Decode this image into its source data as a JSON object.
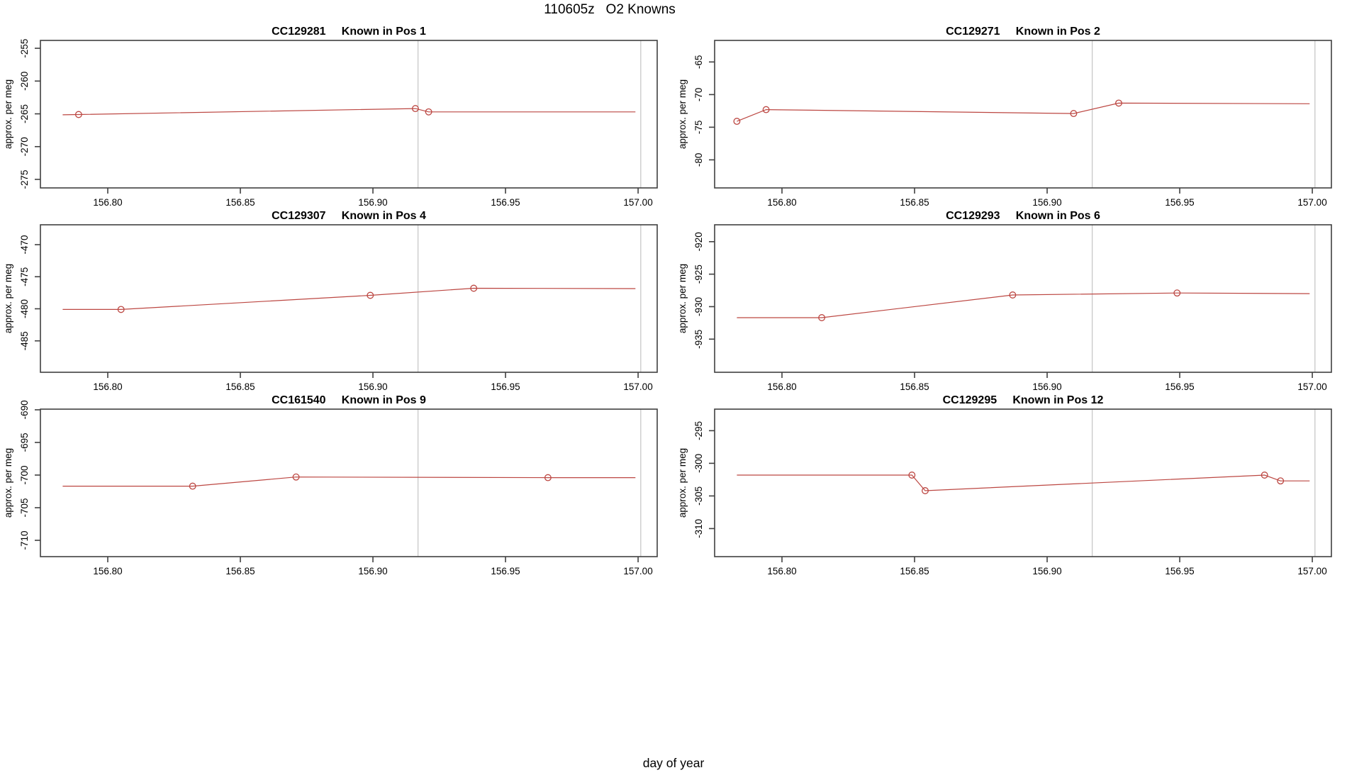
{
  "figure": {
    "title": "110605z   O2 Knowns",
    "xlabel": "day of year",
    "colors": {
      "series": "#bc4742",
      "vline": "#c8c8c8",
      "frame": "#404040",
      "text": "#000000",
      "background": "#ffffff"
    }
  },
  "chart_data": {
    "type": "line",
    "grid": false,
    "legend": "none",
    "x_axis": {
      "label": "day of year",
      "range": [
        156.7746,
        157.0072
      ],
      "ticks": [
        156.8,
        156.85,
        156.9,
        156.95,
        157.0
      ],
      "tick_labels": [
        "156.80",
        "156.85",
        "156.90",
        "156.95",
        "157.00"
      ]
    },
    "y_label": "approx. per meg",
    "vlines": [
      156.917,
      157.001
    ],
    "marker": "open-circle",
    "plots": [
      {
        "sample_id": "CC129281",
        "position_label": "Known in Pos 1",
        "y_ticks": [
          -275,
          -270,
          -265,
          -260,
          -255
        ],
        "y_tick_labels": [
          "-275",
          "-270",
          "-265",
          "-260",
          "-255"
        ],
        "y_range": [
          -276.3,
          -253.8
        ],
        "line": [
          [
            156.783,
            -265.15
          ],
          [
            156.789,
            -265.1
          ],
          [
            156.916,
            -264.2
          ],
          [
            156.921,
            -264.7
          ],
          [
            156.999,
            -264.7
          ]
        ],
        "points": [
          [
            156.789,
            -265.1
          ],
          [
            156.916,
            -264.2
          ],
          [
            156.921,
            -264.7
          ]
        ]
      },
      {
        "sample_id": "CC129271",
        "position_label": "Known in Pos 2",
        "y_ticks": [
          -80,
          -75,
          -70,
          -65
        ],
        "y_tick_labels": [
          "-80",
          "-75",
          "-70",
          "-65"
        ],
        "y_range": [
          -84.3,
          -61.7
        ],
        "line": [
          [
            156.783,
            -74.1
          ],
          [
            156.794,
            -72.3
          ],
          [
            156.91,
            -72.9
          ],
          [
            156.927,
            -71.3
          ],
          [
            156.999,
            -71.4
          ]
        ],
        "points": [
          [
            156.783,
            -74.1
          ],
          [
            156.794,
            -72.3
          ],
          [
            156.91,
            -72.9
          ],
          [
            156.927,
            -71.3
          ]
        ]
      },
      {
        "sample_id": "CC129307",
        "position_label": "Known in Pos 4",
        "y_ticks": [
          -485,
          -480,
          -475,
          -470
        ],
        "y_tick_labels": [
          "-485",
          "-480",
          "-475",
          "-470"
        ],
        "y_range": [
          -489.9,
          -466.9
        ],
        "line": [
          [
            156.783,
            -480.1
          ],
          [
            156.805,
            -480.1
          ],
          [
            156.899,
            -477.9
          ],
          [
            156.938,
            -476.8
          ],
          [
            156.999,
            -476.85
          ]
        ],
        "points": [
          [
            156.805,
            -480.1
          ],
          [
            156.899,
            -477.9
          ],
          [
            156.938,
            -476.8
          ]
        ]
      },
      {
        "sample_id": "CC129293",
        "position_label": "Known in Pos 6",
        "y_ticks": [
          -935,
          -930,
          -925,
          -920
        ],
        "y_tick_labels": [
          "-935",
          "-930",
          "-925",
          "-920"
        ],
        "y_range": [
          -940.1,
          -917.4
        ],
        "line": [
          [
            156.783,
            -931.7
          ],
          [
            156.815,
            -931.7
          ],
          [
            156.887,
            -928.2
          ],
          [
            156.949,
            -927.9
          ],
          [
            156.999,
            -928.0
          ]
        ],
        "points": [
          [
            156.815,
            -931.7
          ],
          [
            156.887,
            -928.2
          ],
          [
            156.949,
            -927.9
          ]
        ]
      },
      {
        "sample_id": "CC161540",
        "position_label": "Known in Pos 9",
        "y_ticks": [
          -710,
          -705,
          -700,
          -695,
          -690
        ],
        "y_tick_labels": [
          "-710",
          "-705",
          "-700",
          "-695",
          "-690"
        ],
        "y_range": [
          -712.5,
          -689.9
        ],
        "line": [
          [
            156.783,
            -701.7
          ],
          [
            156.832,
            -701.7
          ],
          [
            156.871,
            -700.3
          ],
          [
            156.966,
            -700.4
          ],
          [
            156.999,
            -700.4
          ]
        ],
        "points": [
          [
            156.832,
            -701.7
          ],
          [
            156.871,
            -700.3
          ],
          [
            156.966,
            -700.4
          ]
        ]
      },
      {
        "sample_id": "CC129295",
        "position_label": "Known in Pos 12",
        "y_ticks": [
          -310,
          -305,
          -300,
          -295
        ],
        "y_tick_labels": [
          "-310",
          "-305",
          "-300",
          "-295"
        ],
        "y_range": [
          -314.3,
          -291.7
        ],
        "line": [
          [
            156.783,
            -301.8
          ],
          [
            156.849,
            -301.8
          ],
          [
            156.854,
            -304.2
          ],
          [
            156.982,
            -301.8
          ],
          [
            156.988,
            -302.7
          ],
          [
            156.999,
            -302.7
          ]
        ],
        "points": [
          [
            156.849,
            -301.8
          ],
          [
            156.854,
            -304.2
          ],
          [
            156.982,
            -301.8
          ],
          [
            156.988,
            -302.7
          ]
        ]
      }
    ]
  }
}
